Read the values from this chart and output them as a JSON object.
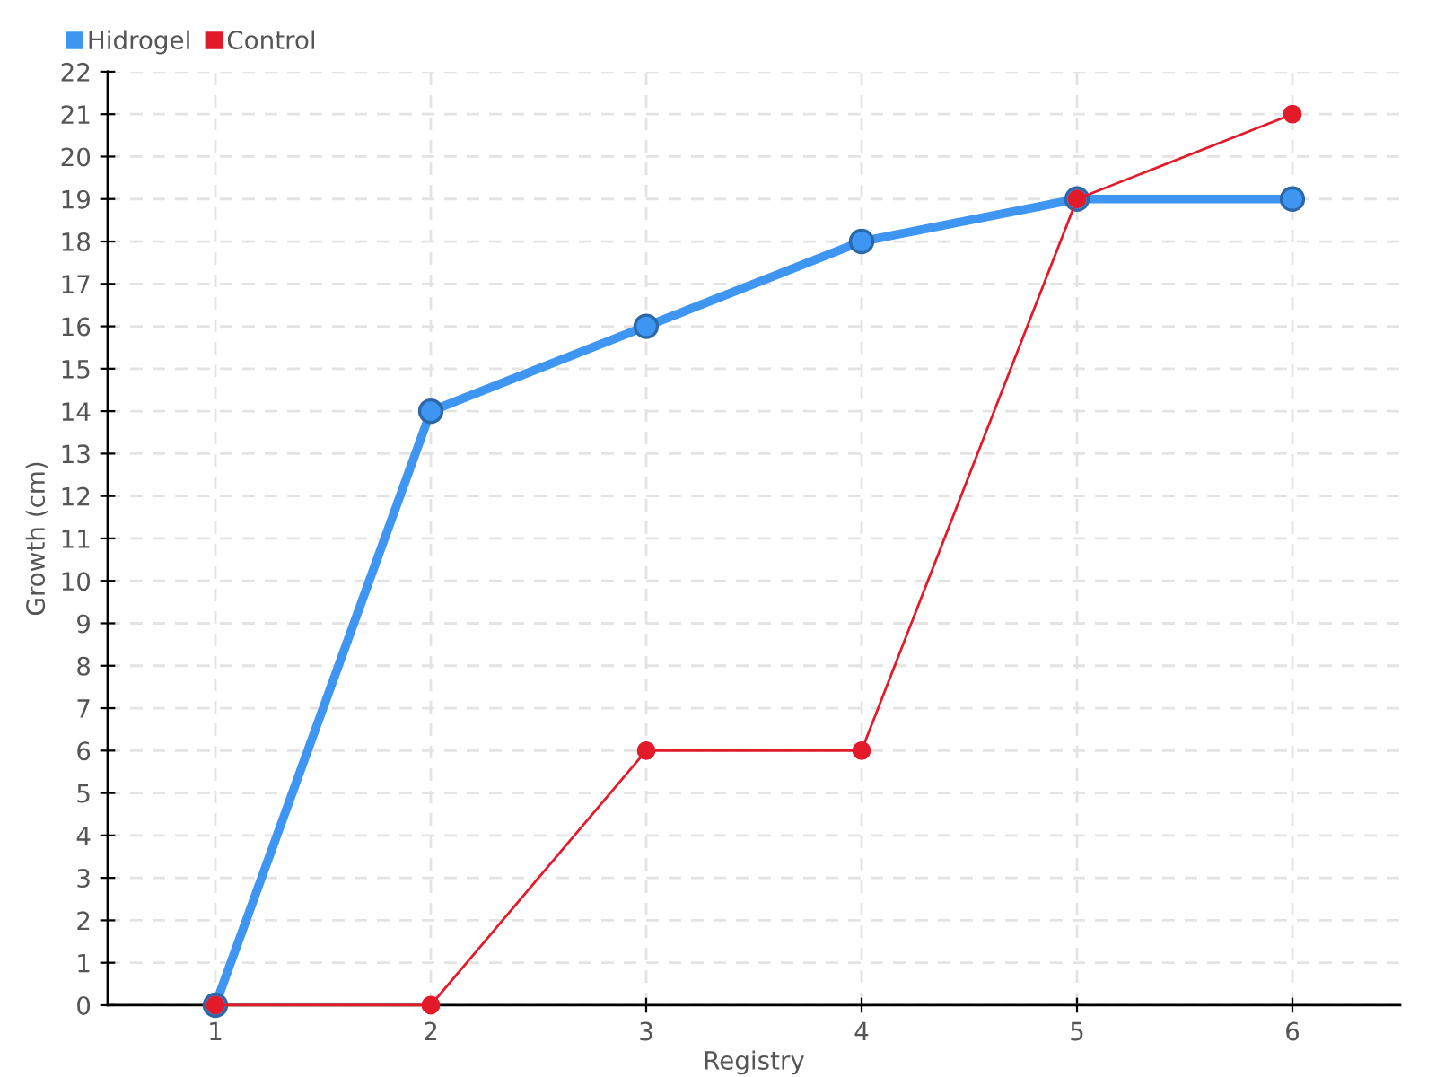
{
  "chart_data": {
    "type": "line",
    "xlabel": "Registry",
    "ylabel": "Growth (cm)",
    "categories": [
      "1",
      "2",
      "3",
      "4",
      "5",
      "6"
    ],
    "series": [
      {
        "name": "Hidrogel",
        "color": "#3f95f2",
        "values": [
          0,
          14,
          16,
          18,
          19,
          19
        ]
      },
      {
        "name": "Control",
        "color": "#e31a2a",
        "values": [
          0,
          0,
          6,
          6,
          19,
          21
        ]
      }
    ],
    "ylim": [
      0,
      22
    ],
    "yticks": [
      0,
      1,
      2,
      3,
      4,
      5,
      6,
      7,
      8,
      9,
      10,
      11,
      12,
      13,
      14,
      15,
      16,
      17,
      18,
      19,
      20,
      21,
      22
    ],
    "grid": true,
    "legend": "top left",
    "marker": "circle",
    "line_style": "solid"
  }
}
